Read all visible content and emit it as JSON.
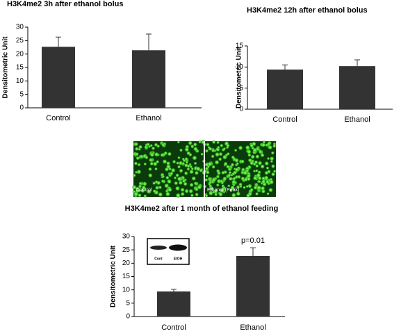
{
  "chart_data": [
    {
      "type": "bar",
      "title": "H3K4me2 3h after ethanol bolus",
      "y_label": "Densitometric Unit",
      "categories": [
        "Control",
        "Ethanol"
      ],
      "values": [
        22.7,
        21.4
      ],
      "errors": [
        3.6,
        6.0
      ],
      "color": "#333333",
      "ylim": [
        0,
        30
      ],
      "yticks": [
        0,
        5,
        10,
        15,
        20,
        25,
        30
      ]
    },
    {
      "type": "bar",
      "title": "H3K4me2 12h after ethanol bolus",
      "y_label": "Densitometric Unit",
      "categories": [
        "Control",
        "Ethanol"
      ],
      "values": [
        9.4,
        10.2
      ],
      "errors": [
        1.1,
        1.5
      ],
      "color": "#333333",
      "ylim": [
        0,
        15
      ],
      "yticks": [
        0,
        5,
        10,
        15
      ]
    },
    {
      "type": "bar",
      "title": "H3K4me2 after 1 month of ethanol feeding",
      "y_label": "Densitometric Unit",
      "categories": [
        "Control",
        "Ethanol"
      ],
      "values": [
        9.4,
        22.7
      ],
      "errors": [
        0.8,
        3.1
      ],
      "color": "#333333",
      "ylim": [
        0,
        30
      ],
      "yticks": [
        0,
        5,
        10,
        15,
        20,
        25,
        30
      ],
      "annotation": "p=0.01",
      "inset_labels": [
        "Cont",
        "EtOH"
      ]
    }
  ],
  "image": {
    "labels": [
      "Control",
      "Ethanol (Peak)"
    ]
  }
}
